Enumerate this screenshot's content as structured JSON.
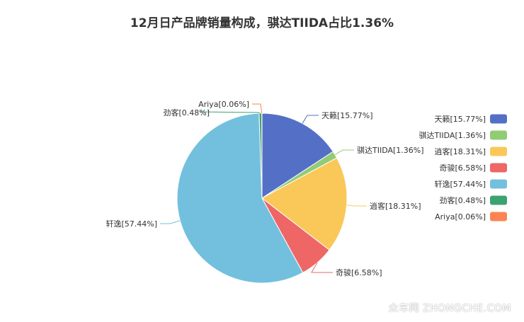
{
  "chart_data": {
    "type": "pie",
    "title": "12月日产品牌销量构成，骐达TIIDA占比1.36%",
    "slices": [
      {
        "label": "天籁[15.77%]",
        "value": 15.77,
        "color": "#5470c6"
      },
      {
        "label": "骐达TIIDA[1.36%]",
        "value": 1.36,
        "color": "#91cc75"
      },
      {
        "label": "逍客[18.31%]",
        "value": 18.31,
        "color": "#fac858"
      },
      {
        "label": "奇骏[6.58%]",
        "value": 6.58,
        "color": "#ee6666"
      },
      {
        "label": "轩逸[57.44%]",
        "value": 57.44,
        "color": "#73c0de"
      },
      {
        "label": "劲客[0.48%]",
        "value": 0.48,
        "color": "#3ba272"
      },
      {
        "label": "Ariya[0.06%]",
        "value": 0.06,
        "color": "#fc8452"
      }
    ],
    "legend_position": "right"
  },
  "watermark": "众车网 ZHONGCHE.COM"
}
